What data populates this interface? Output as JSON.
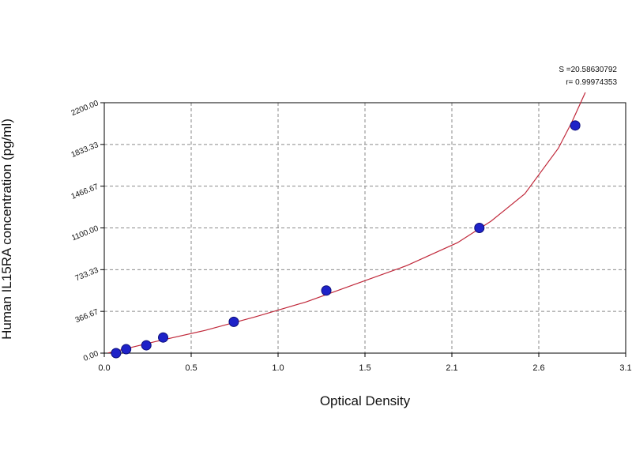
{
  "chart_data": {
    "type": "scatter",
    "xlabel": "Optical Density",
    "ylabel": "Human IL15RA  concentration (pg/ml)",
    "xlim": [
      0,
      3.1
    ],
    "ylim": [
      0,
      2200
    ],
    "x_tick_labels": [
      "0.0",
      "0.5",
      "1.0",
      "1.5",
      "2.1",
      "2.6",
      "3.1"
    ],
    "y_tick_labels": [
      "0.00",
      "366.67",
      "733.33",
      "1100.00",
      "1466.67",
      "1833.33",
      "2200.00"
    ],
    "grid": true,
    "points": [
      {
        "x": 0.07,
        "y": 0
      },
      {
        "x": 0.13,
        "y": 34.4
      },
      {
        "x": 0.25,
        "y": 68.8
      },
      {
        "x": 0.35,
        "y": 137.5
      },
      {
        "x": 0.77,
        "y": 275
      },
      {
        "x": 1.32,
        "y": 550
      },
      {
        "x": 2.23,
        "y": 1100
      },
      {
        "x": 2.8,
        "y": 2000
      }
    ],
    "fit_curve": [
      {
        "x": 0.02,
        "y": 0
      },
      {
        "x": 0.3,
        "y": 100
      },
      {
        "x": 0.6,
        "y": 200
      },
      {
        "x": 0.9,
        "y": 320
      },
      {
        "x": 1.2,
        "y": 450
      },
      {
        "x": 1.5,
        "y": 610
      },
      {
        "x": 1.8,
        "y": 770
      },
      {
        "x": 2.1,
        "y": 970
      },
      {
        "x": 2.3,
        "y": 1160
      },
      {
        "x": 2.5,
        "y": 1400
      },
      {
        "x": 2.7,
        "y": 1800
      },
      {
        "x": 2.78,
        "y": 2030
      },
      {
        "x": 2.86,
        "y": 2290
      }
    ],
    "stats": [
      "S =20.58630792",
      "r= 0.99974353"
    ],
    "colors": {
      "points": "#1e22c8",
      "curve": "#c0283a",
      "grid": "#8a8a8a",
      "axis": "#000000"
    }
  }
}
